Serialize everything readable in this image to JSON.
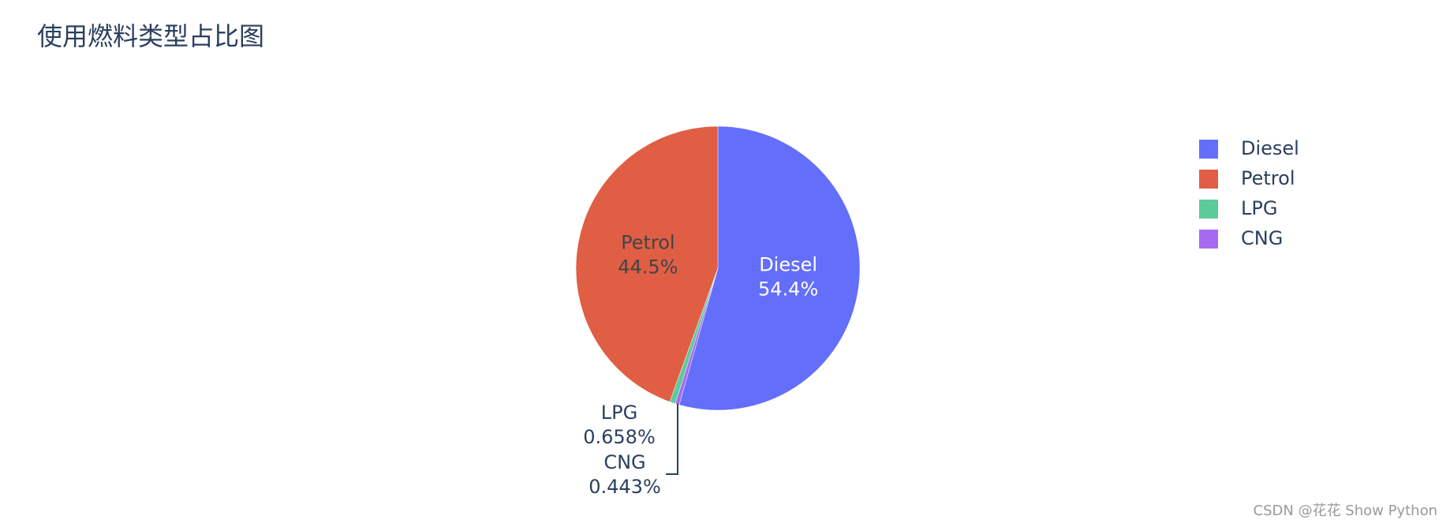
{
  "chart_data": {
    "type": "pie",
    "title": "使用燃料类型占比图",
    "categories": [
      "Diesel",
      "Petrol",
      "LPG",
      "CNG"
    ],
    "values": [
      54.4,
      44.5,
      0.658,
      0.443
    ],
    "value_labels": [
      "54.4%",
      "44.5%",
      "0.658%",
      "0.443%"
    ],
    "colors": [
      "#636efa",
      "#e05e44",
      "#5ccb9a",
      "#a66af0"
    ],
    "legend": "top-right"
  },
  "watermark": "CSDN @花花 Show Python"
}
